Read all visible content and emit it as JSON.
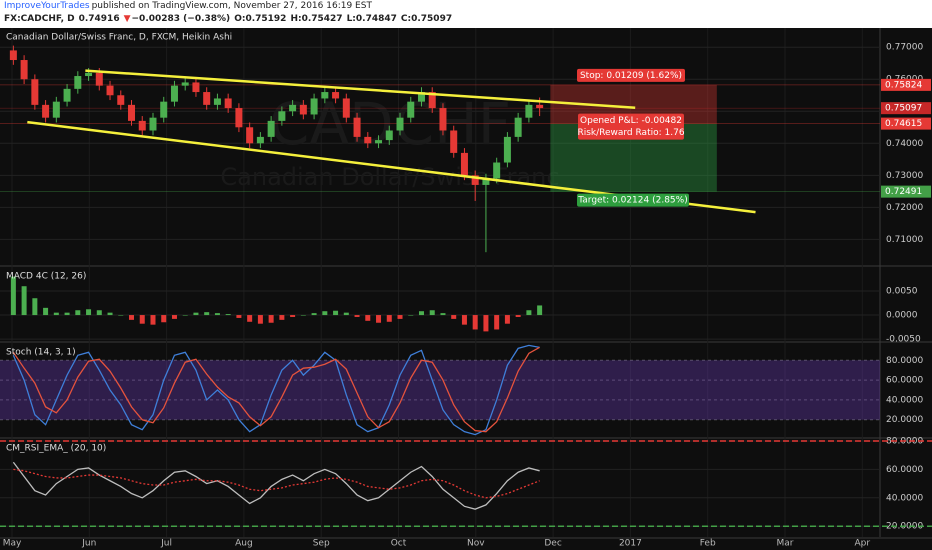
{
  "header": {
    "author": "ImproveYourTrades",
    "published": "published on TradingView.com, November 27, 2016 16:19 EST",
    "symbol": "FX:CADCHF, D",
    "last": "0.74916",
    "change_arrow": "▼",
    "change": "−0.00283 (−0.38%)",
    "open": "O:0.75192",
    "high": "H:0.75427",
    "low": "L:0.74847",
    "close": "C:0.75097"
  },
  "x_axis_labels": [
    "May",
    "Jun",
    "Jul",
    "Aug",
    "Sep",
    "Oct",
    "Nov",
    "Dec",
    "2017",
    "Feb",
    "Mar",
    "Apr"
  ],
  "chart_data": [
    {
      "type": "candlestick",
      "title": "Canadian Dollar/Swiss Franc, D, FXCM, Heikin Ashi",
      "watermark": "CADCHF",
      "watermark_subtitle": "Canadian Dollar/Swiss Franc",
      "up_color": "#4caf50",
      "down_color": "#e53935",
      "open": [
        0.769,
        0.766,
        0.76,
        0.752,
        0.748,
        0.753,
        0.757,
        0.761,
        0.762,
        0.758,
        0.755,
        0.752,
        0.747,
        0.744,
        0.748,
        0.753,
        0.758,
        0.759,
        0.756,
        0.752,
        0.754,
        0.751,
        0.745,
        0.74,
        0.742,
        0.747,
        0.75,
        0.752,
        0.749,
        0.754,
        0.756,
        0.754,
        0.748,
        0.742,
        0.74,
        0.741,
        0.744,
        0.748,
        0.753,
        0.756,
        0.751,
        0.744,
        0.737,
        0.73,
        0.727,
        0.729,
        0.734,
        0.742,
        0.748,
        0.752
      ],
      "close": [
        0.766,
        0.76,
        0.752,
        0.748,
        0.753,
        0.757,
        0.761,
        0.762,
        0.758,
        0.755,
        0.752,
        0.747,
        0.744,
        0.748,
        0.753,
        0.758,
        0.759,
        0.756,
        0.752,
        0.754,
        0.751,
        0.745,
        0.74,
        0.742,
        0.747,
        0.75,
        0.752,
        0.749,
        0.754,
        0.756,
        0.754,
        0.748,
        0.742,
        0.74,
        0.741,
        0.744,
        0.748,
        0.753,
        0.756,
        0.751,
        0.744,
        0.737,
        0.73,
        0.727,
        0.729,
        0.734,
        0.742,
        0.748,
        0.752,
        0.751
      ],
      "high": [
        0.7705,
        0.7675,
        0.7615,
        0.7535,
        0.7545,
        0.7585,
        0.7625,
        0.7635,
        0.7635,
        0.7595,
        0.7565,
        0.7535,
        0.7485,
        0.7495,
        0.7545,
        0.7595,
        0.7605,
        0.7605,
        0.7575,
        0.7555,
        0.7555,
        0.7525,
        0.7465,
        0.7435,
        0.7485,
        0.7515,
        0.7535,
        0.7535,
        0.7555,
        0.7575,
        0.7575,
        0.7555,
        0.7495,
        0.7435,
        0.7425,
        0.7455,
        0.7495,
        0.7545,
        0.7575,
        0.7575,
        0.7525,
        0.7455,
        0.7385,
        0.7315,
        0.7305,
        0.7355,
        0.7435,
        0.7495,
        0.7535,
        0.7543
      ],
      "low": [
        0.7645,
        0.7585,
        0.7505,
        0.7465,
        0.7465,
        0.7515,
        0.7555,
        0.7595,
        0.7565,
        0.7535,
        0.7505,
        0.7455,
        0.7425,
        0.7425,
        0.7465,
        0.7515,
        0.7565,
        0.7545,
        0.7505,
        0.7505,
        0.7495,
        0.7435,
        0.7385,
        0.7385,
        0.7405,
        0.7455,
        0.7485,
        0.7475,
        0.7475,
        0.7525,
        0.7525,
        0.7465,
        0.7405,
        0.7385,
        0.7385,
        0.7395,
        0.7425,
        0.7465,
        0.7515,
        0.7495,
        0.7425,
        0.7355,
        0.7285,
        0.722,
        0.706,
        0.7275,
        0.7325,
        0.7405,
        0.7465,
        0.7485
      ],
      "ylim": [
        0.702,
        0.776
      ],
      "yticks": [
        {
          "value": 0.77,
          "label": "0.77000"
        },
        {
          "value": 0.76,
          "label": "0.76000"
        },
        {
          "value": 0.75,
          "label": "0.75000"
        },
        {
          "value": 0.74,
          "label": "0.74000"
        },
        {
          "value": 0.73,
          "label": "0.73000"
        },
        {
          "value": 0.72,
          "label": "0.72000"
        },
        {
          "value": 0.71,
          "label": "0.71000"
        }
      ],
      "price_labels": [
        {
          "value": 0.75824,
          "label": "0.75824",
          "color": "#e53935"
        },
        {
          "value": 0.75097,
          "label": "0.75097",
          "color": "#c62828"
        },
        {
          "value": 0.74615,
          "label": "0.74615",
          "color": "#e53935"
        },
        {
          "value": 0.72491,
          "label": "0.72491",
          "color": "#43a047"
        }
      ],
      "trend_lines": [
        {
          "color": "#f5f03c",
          "x": [
            6.7,
            57.9
          ],
          "y": [
            0.7627,
            0.7511
          ]
        },
        {
          "color": "#f5f03c",
          "x": [
            1.3,
            69.1
          ],
          "y": [
            0.7466,
            0.7185
          ]
        }
      ],
      "position": {
        "x": [
          50,
          65.5
        ],
        "entry": 0.74615,
        "stop": 0.75824,
        "target": 0.72491,
        "stop_label": "Stop: 0.01209 (1.62%)",
        "pnl_label": "Opened P&L: -0.00482",
        "rr_label": "Risk/Reward Ratio: 1.76",
        "target_label": "Target: 0.02124 (2.85%)"
      }
    },
    {
      "type": "bar",
      "title": "MACD 4C (12, 26)",
      "up_color": "#4caf50",
      "down_color": "#e53935",
      "values": [
        0.008,
        0.006,
        0.0035,
        0.0015,
        0.0005,
        0.0005,
        0.001,
        0.0012,
        0.001,
        0.0005,
        0.0,
        -0.001,
        -0.0018,
        -0.002,
        -0.0015,
        -0.0008,
        0.0,
        0.0005,
        0.0006,
        0.0004,
        0.0002,
        -0.0006,
        -0.0014,
        -0.0018,
        -0.0016,
        -0.001,
        -0.0004,
        0.0,
        0.0004,
        0.0008,
        0.0009,
        0.0005,
        -0.0004,
        -0.0012,
        -0.0016,
        -0.0014,
        -0.0008,
        0.0,
        0.0008,
        0.001,
        0.0004,
        -0.0008,
        -0.002,
        -0.003,
        -0.0034,
        -0.003,
        -0.0018,
        -0.0004,
        0.001,
        0.002
      ],
      "ylim": [
        -0.0054,
        0.01
      ],
      "yticks": [
        {
          "value": 0.005,
          "label": "0.0050"
        },
        {
          "value": 0,
          "label": "0.0000"
        },
        {
          "value": -0.005,
          "label": "-0.0050"
        }
      ]
    },
    {
      "type": "line",
      "title": "Stoch (14, 3, 1)",
      "band_color": "rgba(110,60,190,0.35)",
      "series": [
        {
          "color": "#3f7fd9",
          "values": [
            85,
            60,
            25,
            15,
            40,
            65,
            85,
            88,
            70,
            50,
            35,
            15,
            10,
            25,
            60,
            85,
            88,
            70,
            40,
            50,
            40,
            20,
            8,
            15,
            45,
            70,
            80,
            65,
            75,
            88,
            80,
            45,
            15,
            8,
            12,
            35,
            65,
            85,
            90,
            60,
            30,
            15,
            8,
            5,
            10,
            40,
            75,
            92,
            95,
            93
          ]
        },
        {
          "color": "#e5533d",
          "values": [
            88,
            72,
            57,
            33,
            27,
            40,
            63,
            79,
            81,
            69,
            52,
            33,
            20,
            17,
            32,
            57,
            78,
            81,
            66,
            53,
            43,
            37,
            23,
            14,
            23,
            43,
            65,
            72,
            73,
            76,
            81,
            71,
            47,
            23,
            12,
            18,
            37,
            62,
            80,
            78,
            60,
            35,
            18,
            9,
            8,
            18,
            42,
            69,
            87,
            93
          ]
        }
      ],
      "ylim": [
        2.6,
        97.4
      ],
      "yticks": [
        {
          "value": 80,
          "label": "80.0000"
        },
        {
          "value": 60,
          "label": "60.0000"
        },
        {
          "value": 40,
          "label": "40.0000"
        },
        {
          "value": 20,
          "label": "20.0000"
        }
      ]
    },
    {
      "type": "line",
      "title": "CM_RSI_EMA_ (20, 10)",
      "upper_color": "#e53935",
      "lower_color": "#43a047",
      "series": [
        {
          "color": "#bdbdbd",
          "values": [
            65,
            55,
            45,
            42,
            50,
            55,
            60,
            61,
            56,
            52,
            48,
            43,
            40,
            45,
            52,
            58,
            59,
            55,
            50,
            52,
            48,
            42,
            36,
            40,
            48,
            53,
            56,
            52,
            57,
            60,
            57,
            50,
            42,
            38,
            40,
            46,
            52,
            58,
            62,
            55,
            46,
            40,
            34,
            32,
            35,
            43,
            52,
            58,
            61,
            59
          ]
        },
        {
          "color": "#e53935",
          "dashed": true,
          "values": [
            60,
            59,
            57,
            55,
            54,
            54,
            55,
            56,
            56,
            55,
            54,
            52,
            50,
            49,
            49,
            51,
            52,
            53,
            52,
            52,
            51,
            49,
            46,
            45,
            46,
            47,
            49,
            50,
            51,
            53,
            54,
            53,
            51,
            48,
            47,
            46,
            47,
            49,
            52,
            53,
            52,
            49,
            45,
            42,
            40,
            41,
            43,
            46,
            49,
            52
          ]
        }
      ],
      "ylim": [
        12.4,
        81.4
      ],
      "yticks": [
        {
          "value": 80,
          "label": "80.0000"
        },
        {
          "value": 60,
          "label": "60.0000"
        },
        {
          "value": 40,
          "label": "40.0000"
        },
        {
          "value": 20,
          "label": "20.0000"
        }
      ]
    }
  ]
}
